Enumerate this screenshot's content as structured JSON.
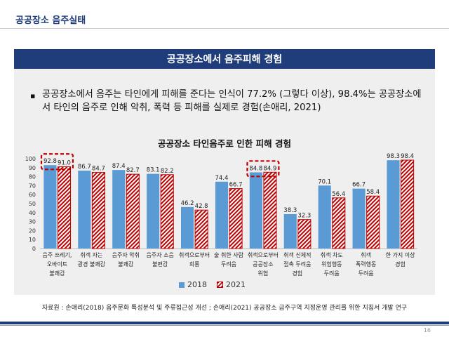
{
  "header": {
    "title": "공공장소 음주실태"
  },
  "section": {
    "banner": "공공장소에서 음주피해 경험"
  },
  "bullet": {
    "mark": "▪",
    "text": "공공장소에서 음주는 타인에게 피해를 준다는 인식이 77.2% (그렇다 이상), 98.4%는 공공장소에서 타인의 음주로 인해 악취, 폭력 등 피해를 실제로 경험(손애리, 2021)"
  },
  "chart_data": {
    "type": "bar",
    "title": "공공장소 타인음주로 인한 피해 경험",
    "categories": [
      [
        "음주 쓰레기,",
        "오바이트",
        "불쾌감"
      ],
      [
        "취객 자는",
        "광경 불쾌감"
      ],
      [
        "음주자 악취",
        "불쾌감"
      ],
      [
        "음주자 소음",
        "불편감"
      ],
      [
        "취객으로부터",
        "희롱"
      ],
      [
        "술 취한 사람",
        "두려움"
      ],
      [
        "취객으로부터",
        "공공장소",
        "위협"
      ],
      [
        "취객 신체적",
        "접촉 두려움",
        "경험"
      ],
      [
        "취객 차도",
        "위험행동",
        "두려움"
      ],
      [
        "취객",
        "폭력행동",
        "두려움"
      ],
      [
        "한 가지 이상",
        "경험"
      ]
    ],
    "series": [
      {
        "name": "2018",
        "values": [
          92.8,
          86.7,
          87.4,
          83.1,
          46.2,
          74.4,
          84.8,
          38.3,
          70.1,
          66.7,
          98.3
        ],
        "color": "#5b9bd5"
      },
      {
        "name": "2021",
        "values": [
          91.0,
          84.7,
          82.7,
          82.2,
          42.8,
          66.7,
          84.9,
          32.3,
          56.4,
          58.4,
          98.4
        ],
        "color": "#c00000"
      }
    ],
    "ylim": [
      0,
      100
    ],
    "yticks": [
      0,
      10,
      20,
      30,
      40,
      50,
      60,
      70,
      80,
      90,
      100
    ],
    "highlighted_categories": [
      0,
      6
    ],
    "highlight_color": "#c00000",
    "legend_position": "bottom"
  },
  "legend": {
    "label_2018": "2018",
    "label_2021": "2021"
  },
  "source": "자료원 : 손애리(2018) 음주문화 특성분석 및 주류접근성 개선 ; 손애리(2021) 공공장소 금주구역 지정운영 관리를 위한 지침서 개발 연구",
  "page_number": "16"
}
